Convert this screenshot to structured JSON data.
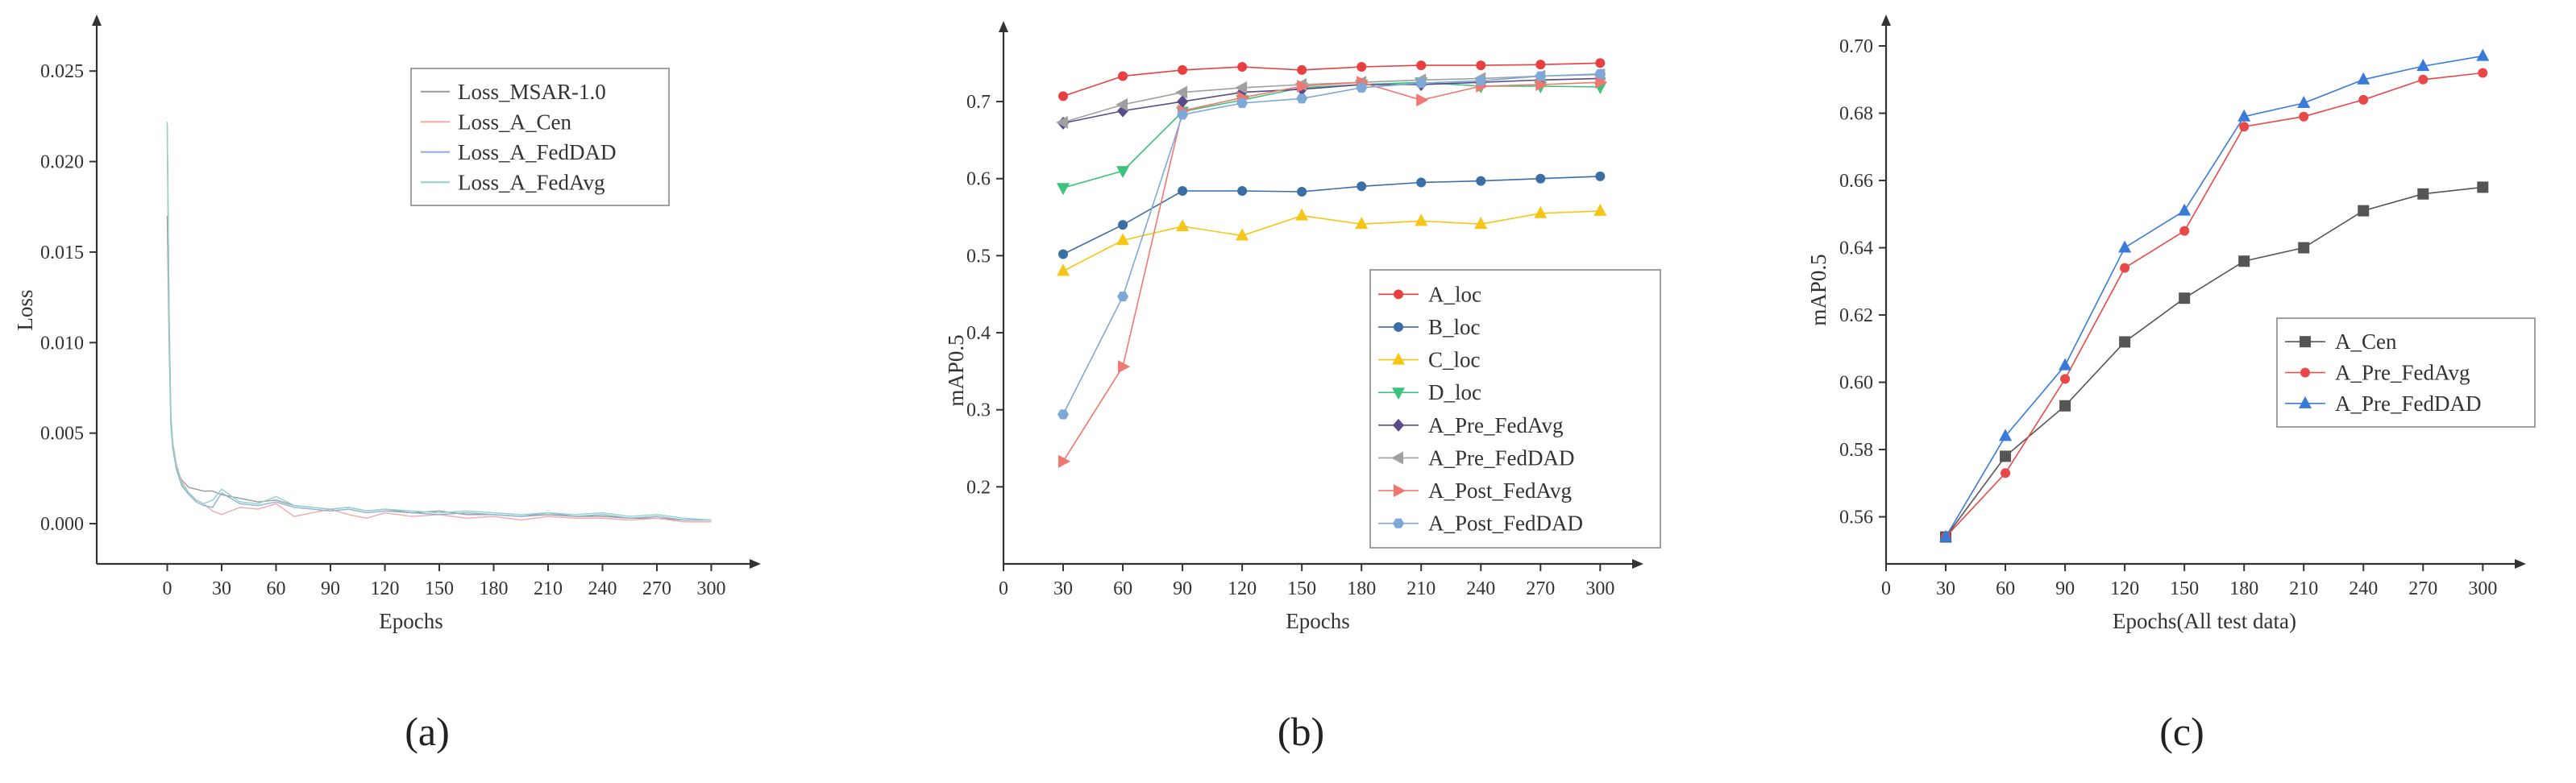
{
  "colors": {
    "axis": "#333333",
    "text": "#333333"
  },
  "captions": [
    "(a)",
    "(b)",
    "(c)"
  ],
  "chart_data": [
    {
      "id": "a",
      "type": "line",
      "title": "",
      "xlabel": "Epochs",
      "ylabel": "Loss",
      "xlim": [
        -30,
        310
      ],
      "ylim": [
        -0.002,
        0.0275
      ],
      "xticks": [
        0,
        30,
        60,
        90,
        120,
        150,
        180,
        210,
        240,
        270,
        300
      ],
      "xtick_labels": [
        "0",
        "30",
        "60",
        "90",
        "120",
        "150",
        "180",
        "210",
        "240",
        "270",
        "300"
      ],
      "yticks": [
        0.0,
        0.005,
        0.01,
        0.015,
        0.02,
        0.025
      ],
      "ytick_labels": [
        "0.000",
        "0.005",
        "0.010",
        "0.015",
        "0.020",
        "0.025"
      ],
      "legend_position": "top-right",
      "series": [
        {
          "name": "Loss_MSAR-1.0",
          "color": "#9a9a9a",
          "x": [
            0,
            1,
            2,
            3,
            5,
            8,
            12,
            16,
            20,
            25,
            30,
            40,
            50,
            60,
            70,
            80,
            90,
            100,
            110,
            120,
            135,
            150,
            165,
            180,
            195,
            210,
            225,
            240,
            255,
            270,
            285,
            300
          ],
          "y": [
            0.017,
            0.01,
            0.0055,
            0.0042,
            0.0031,
            0.0024,
            0.002,
            0.0019,
            0.0018,
            0.0018,
            0.0016,
            0.0014,
            0.0012,
            0.0013,
            0.001,
            0.0009,
            0.0008,
            0.0009,
            0.0007,
            0.0008,
            0.0006,
            0.0007,
            0.0005,
            0.0005,
            0.0004,
            0.0005,
            0.0004,
            0.0004,
            0.0003,
            0.0003,
            0.0002,
            0.0002
          ]
        },
        {
          "name": "Loss_A_Cen",
          "color": "#f0a8a8",
          "x": [
            0,
            1,
            2,
            3,
            5,
            8,
            12,
            16,
            20,
            25,
            30,
            40,
            50,
            60,
            70,
            80,
            90,
            100,
            110,
            120,
            135,
            150,
            165,
            180,
            195,
            210,
            225,
            240,
            255,
            270,
            285,
            300
          ],
          "y": [
            0.0215,
            0.012,
            0.006,
            0.0045,
            0.0033,
            0.0023,
            0.0017,
            0.0013,
            0.0011,
            0.0007,
            0.0005,
            0.0009,
            0.0008,
            0.0011,
            0.0004,
            0.0006,
            0.0008,
            0.0005,
            0.0003,
            0.0006,
            0.0004,
            0.0005,
            0.0003,
            0.0004,
            0.0002,
            0.0004,
            0.0003,
            0.0003,
            0.0002,
            0.0003,
            0.0001,
            0.0001
          ]
        },
        {
          "name": "Loss_A_FedDAD",
          "color": "#8fb0d6",
          "x": [
            0,
            1,
            2,
            3,
            5,
            8,
            12,
            16,
            20,
            25,
            30,
            40,
            50,
            60,
            70,
            80,
            90,
            100,
            110,
            120,
            135,
            150,
            165,
            180,
            195,
            210,
            225,
            240,
            255,
            270,
            285,
            300
          ],
          "y": [
            0.022,
            0.011,
            0.0058,
            0.0042,
            0.003,
            0.0021,
            0.0016,
            0.0012,
            0.001,
            0.0009,
            0.0017,
            0.0011,
            0.001,
            0.0012,
            0.0009,
            0.0008,
            0.0007,
            0.0008,
            0.0006,
            0.0007,
            0.0006,
            0.0005,
            0.0006,
            0.0005,
            0.0004,
            0.0006,
            0.0004,
            0.0005,
            0.0003,
            0.0004,
            0.0002,
            0.0002
          ]
        },
        {
          "name": "Loss_A_FedAvg",
          "color": "#8fd3c4",
          "x": [
            0,
            1,
            2,
            3,
            5,
            8,
            12,
            16,
            20,
            25,
            30,
            40,
            50,
            60,
            70,
            80,
            90,
            100,
            110,
            120,
            135,
            150,
            165,
            180,
            195,
            210,
            225,
            240,
            255,
            270,
            285,
            300
          ],
          "y": [
            0.0222,
            0.0115,
            0.006,
            0.0044,
            0.0032,
            0.0022,
            0.0017,
            0.0013,
            0.0011,
            0.0013,
            0.0019,
            0.0012,
            0.0011,
            0.0015,
            0.001,
            0.0009,
            0.0008,
            0.0009,
            0.0007,
            0.0008,
            0.0007,
            0.0006,
            0.0007,
            0.0006,
            0.0005,
            0.0006,
            0.0005,
            0.0006,
            0.0004,
            0.0005,
            0.0003,
            0.0002
          ]
        }
      ]
    },
    {
      "id": "b",
      "type": "line",
      "title": "",
      "xlabel": "Epochs",
      "ylabel": "mAP0.5",
      "xlim": [
        0,
        310
      ],
      "ylim": [
        0.1,
        0.79
      ],
      "xticks": [
        0,
        30,
        60,
        90,
        120,
        150,
        180,
        210,
        240,
        270,
        300
      ],
      "xtick_labels": [
        "0",
        "30",
        "60",
        "90",
        "120",
        "150",
        "180",
        "210",
        "240",
        "270",
        "300"
      ],
      "yticks": [
        0.2,
        0.3,
        0.4,
        0.5,
        0.6,
        0.7
      ],
      "ytick_labels": [
        "0.2",
        "0.3",
        "0.4",
        "0.5",
        "0.6",
        "0.7"
      ],
      "legend_position": "bottom-right",
      "x": [
        30,
        60,
        90,
        120,
        150,
        180,
        210,
        240,
        270,
        300
      ],
      "series": [
        {
          "name": "A_loc",
          "color": "#e84040",
          "marker": "circle",
          "values": [
            0.707,
            0.733,
            0.741,
            0.745,
            0.741,
            0.745,
            0.747,
            0.747,
            0.748,
            0.75
          ]
        },
        {
          "name": "B_loc",
          "color": "#3a6ea5",
          "marker": "circle",
          "values": [
            0.502,
            0.54,
            0.584,
            0.584,
            0.583,
            0.59,
            0.595,
            0.597,
            0.6,
            0.603
          ]
        },
        {
          "name": "C_loc",
          "color": "#f5c518",
          "marker": "triangle-up",
          "values": [
            0.48,
            0.52,
            0.538,
            0.526,
            0.552,
            0.541,
            0.545,
            0.541,
            0.555,
            0.558
          ]
        },
        {
          "name": "D_loc",
          "color": "#3cc47c",
          "marker": "triangle-down",
          "values": [
            0.588,
            0.61,
            0.687,
            0.702,
            0.718,
            0.722,
            0.725,
            0.72,
            0.72,
            0.719
          ]
        },
        {
          "name": "A_Pre_FedAvg",
          "color": "#5a4a8a",
          "marker": "diamond",
          "values": [
            0.672,
            0.688,
            0.7,
            0.712,
            0.716,
            0.722,
            0.722,
            0.725,
            0.728,
            0.73
          ]
        },
        {
          "name": "A_Pre_FedDAD",
          "color": "#a0a0a0",
          "marker": "triangle-left",
          "values": [
            0.673,
            0.696,
            0.712,
            0.718,
            0.722,
            0.725,
            0.728,
            0.73,
            0.733,
            0.735
          ]
        },
        {
          "name": "A_Post_FedAvg",
          "color": "#f07870",
          "marker": "triangle-right",
          "values": [
            0.233,
            0.356,
            0.688,
            0.705,
            0.72,
            0.725,
            0.702,
            0.72,
            0.722,
            0.725
          ]
        },
        {
          "name": "A_Post_FedDAD",
          "color": "#7ea8d8",
          "marker": "hexagon",
          "values": [
            0.294,
            0.447,
            0.683,
            0.698,
            0.704,
            0.718,
            0.724,
            0.727,
            0.733,
            0.736
          ]
        }
      ]
    },
    {
      "id": "c",
      "type": "line",
      "title": "",
      "xlabel": "Epochs(All test data)",
      "ylabel": "mAP0.5",
      "xlim": [
        0,
        310
      ],
      "ylim": [
        0.546,
        0.706
      ],
      "xticks": [
        0,
        30,
        60,
        90,
        120,
        150,
        180,
        210,
        240,
        270,
        300
      ],
      "xtick_labels": [
        "0",
        "30",
        "60",
        "90",
        "120",
        "150",
        "180",
        "210",
        "240",
        "270",
        "300"
      ],
      "yticks": [
        0.56,
        0.58,
        0.6,
        0.62,
        0.64,
        0.66,
        0.68,
        0.7
      ],
      "ytick_labels": [
        "0.56",
        "0.58",
        "0.60",
        "0.62",
        "0.64",
        "0.66",
        "0.68",
        "0.70"
      ],
      "legend_position": "center-right",
      "x": [
        30,
        60,
        90,
        120,
        150,
        180,
        210,
        240,
        270,
        300
      ],
      "series": [
        {
          "name": "A_Cen",
          "color": "#555555",
          "marker": "square",
          "values": [
            0.554,
            0.578,
            0.593,
            0.612,
            0.625,
            0.636,
            0.64,
            0.651,
            0.656,
            0.658
          ]
        },
        {
          "name": "A_Pre_FedAvg",
          "color": "#e84848",
          "marker": "circle",
          "values": [
            0.554,
            0.573,
            0.601,
            0.634,
            0.645,
            0.676,
            0.679,
            0.684,
            0.69,
            0.692
          ]
        },
        {
          "name": "A_Pre_FedDAD",
          "color": "#3a7ad8",
          "marker": "triangle-up",
          "values": [
            0.554,
            0.584,
            0.605,
            0.64,
            0.651,
            0.679,
            0.683,
            0.69,
            0.694,
            0.697
          ]
        }
      ]
    }
  ]
}
